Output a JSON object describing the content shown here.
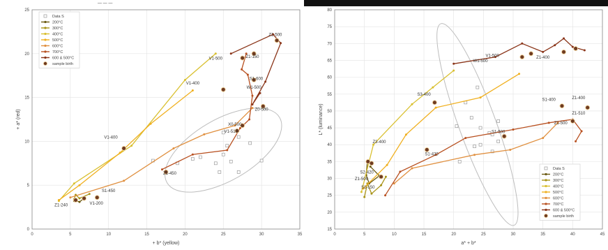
{
  "top_label": "— — —",
  "chart_data": [
    {
      "type": "line",
      "xlabel": "+ b* (yellow)",
      "ylabel": "+ a* (red)",
      "xlim": [
        0,
        35
      ],
      "ylim": [
        0,
        25
      ],
      "xticks": [
        0,
        5,
        10,
        15,
        20,
        25,
        30,
        35
      ],
      "yticks": [
        0,
        5,
        10,
        15,
        20,
        25
      ],
      "legend_position": "top-left",
      "legend": [
        "Data S",
        "200°C",
        "300°C",
        "400°C",
        "500°C",
        "600°C",
        "700°C",
        "600 & 500°C",
        "sample birth"
      ],
      "series": [
        {
          "name": "200°C",
          "color": "#6b5a12",
          "points": [
            [
              5.5,
              3.2
            ],
            [
              5.8,
              3.2
            ],
            [
              6.2,
              3.1
            ],
            [
              6.8,
              3.5
            ]
          ]
        },
        {
          "name": "300°C",
          "color": "#a89318",
          "points": [
            [
              5.5,
              3.4
            ],
            [
              5.7,
              3.9
            ],
            [
              6.2,
              3.5
            ],
            [
              7.5,
              4.0
            ]
          ]
        },
        {
          "name": "400°C",
          "color": "#d9c030",
          "points": [
            [
              3.5,
              3.2
            ],
            [
              5.5,
              5.2
            ],
            [
              13.0,
              9.5
            ],
            [
              20.0,
              17.0
            ],
            [
              24.0,
              20.0
            ]
          ]
        },
        {
          "name": "500°C",
          "color": "#f0b020",
          "points": [
            [
              3.5,
              3.3
            ],
            [
              6.2,
              5.0
            ],
            [
              11.5,
              8.7
            ],
            [
              15.5,
              12.0
            ],
            [
              21.0,
              15.8
            ]
          ]
        },
        {
          "name": "600°C",
          "color": "#e09040",
          "points": [
            [
              5.0,
              3.6
            ],
            [
              12.0,
              5.5
            ],
            [
              18.5,
              9.2
            ],
            [
              22.5,
              10.8
            ],
            [
              26.5,
              11.8
            ],
            [
              28.8,
              13.8
            ]
          ]
        },
        {
          "name": "700°C",
          "color": "#b85020",
          "points": [
            [
              17.0,
              6.8
            ],
            [
              21.0,
              8.5
            ],
            [
              25.5,
              9.0
            ],
            [
              27.2,
              11.5
            ],
            [
              28.4,
              12.5
            ],
            [
              28.8,
              15.2
            ],
            [
              28.2,
              17.6
            ],
            [
              27.4,
              18.2
            ],
            [
              28.0,
              20.0
            ]
          ]
        },
        {
          "name": "600 & 500°C",
          "color": "#8a3418",
          "points": [
            [
              26.0,
              20.0
            ],
            [
              31.5,
              22.2
            ],
            [
              32.5,
              21.2
            ],
            [
              30.5,
              16.8
            ],
            [
              28.8,
              14.2
            ],
            [
              29.8,
              15.5
            ]
          ]
        }
      ],
      "data_s": [
        [
          15.8,
          7.8
        ],
        [
          19.0,
          7.5
        ],
        [
          21.0,
          8.0
        ],
        [
          24.0,
          7.5
        ],
        [
          25.0,
          8.5
        ],
        [
          26.0,
          7.7
        ],
        [
          24.5,
          6.5
        ],
        [
          27.0,
          6.5
        ],
        [
          25.5,
          9.5
        ],
        [
          27.0,
          10.5
        ],
        [
          28.5,
          9.8
        ],
        [
          30.0,
          7.8
        ],
        [
          22.0,
          8.2
        ],
        [
          25.0,
          11.0
        ]
      ],
      "births": [
        [
          5.7,
          3.3
        ],
        [
          6.8,
          3.5
        ],
        [
          8.5,
          3.6
        ],
        [
          17.5,
          6.5
        ],
        [
          12.0,
          9.2
        ],
        [
          25.0,
          15.9
        ],
        [
          27.5,
          19.5
        ],
        [
          29.0,
          20.0
        ],
        [
          26.8,
          11.2
        ],
        [
          27.5,
          11.8
        ],
        [
          30.2,
          14.0
        ],
        [
          32.0,
          21.5
        ],
        [
          29.0,
          17.0
        ]
      ],
      "point_labels": [
        {
          "text": "Z1-240",
          "x": 3.8,
          "y": 2.6
        },
        {
          "text": "V1-200",
          "x": 8.4,
          "y": 2.8
        },
        {
          "text": "S1-450",
          "x": 10.0,
          "y": 4.2
        },
        {
          "text": "V1-400",
          "x": 10.3,
          "y": 10.3
        },
        {
          "text": "V1-400",
          "x": 21.0,
          "y": 16.5
        },
        {
          "text": "V1-500",
          "x": 24.0,
          "y": 19.3
        },
        {
          "text": "Z1-150",
          "x": 28.8,
          "y": 19.5
        },
        {
          "text": "Z1-500",
          "x": 31.8,
          "y": 22.0
        },
        {
          "text": "S1-600",
          "x": 29.3,
          "y": 17.0
        },
        {
          "text": "W1-500",
          "x": 29.0,
          "y": 16.0
        },
        {
          "text": "Z0-500",
          "x": 30.0,
          "y": 13.5
        },
        {
          "text": "X0-500",
          "x": 26.5,
          "y": 11.8
        },
        {
          "text": "V1-510",
          "x": 26.0,
          "y": 11.0
        },
        {
          "text": "Z1-450",
          "x": 18.0,
          "y": 6.2
        }
      ],
      "ellipse": {
        "cx": 25.0,
        "cy": 9.0,
        "rx": 8.5,
        "ry": 3.5,
        "angle_deg": 30
      }
    },
    {
      "type": "line",
      "xlabel": "a* + b*",
      "ylabel": "L* (luminance)",
      "xlim": [
        0,
        45
      ],
      "ylim": [
        15,
        80
      ],
      "xticks": [
        0,
        5,
        10,
        15,
        20,
        25,
        30,
        35,
        40,
        45
      ],
      "yticks": [
        15,
        20,
        25,
        30,
        35,
        40,
        45,
        50,
        55,
        60,
        65,
        70,
        75,
        80
      ],
      "legend_position": "bottom-right",
      "legend": [
        "Data S",
        "200°C",
        "300°C",
        "400°C",
        "500°C",
        "600°C",
        "700°C",
        "600 & 500°C",
        "sample birth"
      ],
      "series": [
        {
          "name": "200°C",
          "color": "#6b5a12",
          "points": [
            [
              5.5,
              35.0
            ],
            [
              5.3,
              31.0
            ],
            [
              5.8,
              28.5
            ],
            [
              7.5,
              30.8
            ],
            [
              6.0,
              33.5
            ]
          ]
        },
        {
          "name": "300°C",
          "color": "#a89318",
          "points": [
            [
              5.0,
              24.5
            ],
            [
              5.5,
              28.5
            ],
            [
              6.2,
              25.5
            ],
            [
              7.8,
              28.0
            ],
            [
              8.6,
              30.5
            ]
          ]
        },
        {
          "name": "400°C",
          "color": "#d9c030",
          "points": [
            [
              4.5,
              26.0
            ],
            [
              6.5,
              40.0
            ],
            [
              13.0,
              52.0
            ],
            [
              16.5,
              57.0
            ],
            [
              20.0,
              62.0
            ]
          ]
        },
        {
          "name": "500°C",
          "color": "#f0b020",
          "points": [
            [
              4.8,
              27.0
            ],
            [
              8.8,
              34.0
            ],
            [
              12.0,
              43.0
            ],
            [
              17.0,
              51.0
            ],
            [
              24.5,
              54.0
            ],
            [
              31.0,
              61.0
            ]
          ]
        },
        {
          "name": "600°C",
          "color": "#e09040",
          "points": [
            [
              10.0,
              28.5
            ],
            [
              13.0,
              33.0
            ],
            [
              23.5,
              37.0
            ],
            [
              29.5,
              38.5
            ],
            [
              35.0,
              42.0
            ],
            [
              37.5,
              46.5
            ]
          ]
        },
        {
          "name": "700°C",
          "color": "#b85020",
          "points": [
            [
              8.5,
              25.0
            ],
            [
              11.0,
              32.0
            ],
            [
              17.0,
              37.0
            ],
            [
              22.0,
              42.0
            ],
            [
              30.0,
              44.5
            ],
            [
              36.0,
              46.5
            ],
            [
              40.0,
              47.5
            ],
            [
              41.5,
              44.0
            ],
            [
              40.5,
              41.0
            ]
          ]
        },
        {
          "name": "600 & 500°C",
          "color": "#8a3418",
          "points": [
            [
              20.0,
              64.0
            ],
            [
              27.0,
              66.0
            ],
            [
              31.5,
              70.0
            ],
            [
              35.0,
              67.5
            ],
            [
              37.0,
              69.5
            ],
            [
              38.5,
              71.5
            ],
            [
              40.0,
              69.0
            ],
            [
              42.0,
              68.0
            ]
          ]
        }
      ],
      "data_s": [
        [
          20.5,
          45.5
        ],
        [
          22.0,
          52.5
        ],
        [
          23.0,
          48.0
        ],
        [
          24.5,
          45.0
        ],
        [
          26.5,
          43.0
        ],
        [
          24.5,
          40.0
        ],
        [
          26.0,
          43.5
        ],
        [
          24.0,
          57.0
        ],
        [
          27.5,
          47.0
        ],
        [
          26.5,
          38.0
        ],
        [
          23.5,
          39.5
        ],
        [
          21.0,
          35.0
        ],
        [
          27.5,
          41.0
        ]
      ],
      "births": [
        [
          5.6,
          35.0
        ],
        [
          6.2,
          34.5
        ],
        [
          7.8,
          30.5
        ],
        [
          15.5,
          38.5
        ],
        [
          16.8,
          52.5
        ],
        [
          28.5,
          42.5
        ],
        [
          31.5,
          66.0
        ],
        [
          33.0,
          67.0
        ],
        [
          38.5,
          67.5
        ],
        [
          40.5,
          68.5
        ],
        [
          38.2,
          51.5
        ],
        [
          42.5,
          51.0
        ],
        [
          40.0,
          47.0
        ]
      ],
      "point_labels": [
        {
          "text": "S1-150",
          "x": 5.6,
          "y": 27.0
        },
        {
          "text": "S2-420",
          "x": 5.4,
          "y": 31.5
        },
        {
          "text": "Z1-500",
          "x": 4.5,
          "y": 29.5
        },
        {
          "text": "S1-420",
          "x": 16.3,
          "y": 36.8
        },
        {
          "text": "Z3-400",
          "x": 7.5,
          "y": 40.5
        },
        {
          "text": "S3-400",
          "x": 15.0,
          "y": 54.5
        },
        {
          "text": "W1-500",
          "x": 24.5,
          "y": 64.5
        },
        {
          "text": "V1-500",
          "x": 26.5,
          "y": 66.0
        },
        {
          "text": "Z1-400",
          "x": 35.0,
          "y": 65.5
        },
        {
          "text": "S1-500",
          "x": 27.5,
          "y": 43.5
        },
        {
          "text": "S1-400",
          "x": 36.0,
          "y": 53.0
        },
        {
          "text": "Z1-400",
          "x": 41.0,
          "y": 53.5
        },
        {
          "text": "Z1-510",
          "x": 41.0,
          "y": 49.0
        },
        {
          "text": "Z1-500",
          "x": 38.0,
          "y": 46.0
        }
      ],
      "ellipse": {
        "cx": 24.0,
        "cy": 46.0,
        "rx": 18.0,
        "ry": 5.5,
        "angle_deg": -70
      }
    }
  ]
}
